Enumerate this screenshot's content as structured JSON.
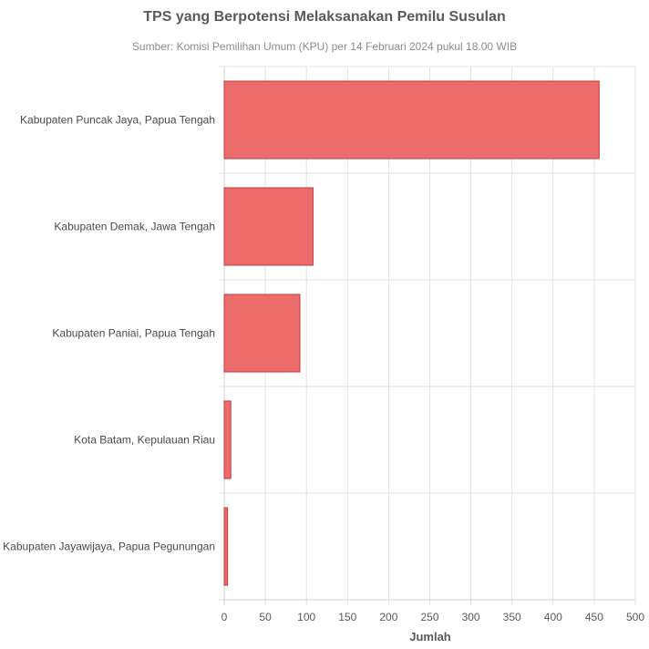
{
  "chart_data": {
    "type": "bar",
    "orientation": "horizontal",
    "title": "TPS yang Berpotensi Melaksanakan Pemilu Susulan",
    "subtitle": "Sumber: Komisi Pemilihan Umum (KPU) per 14 Februari 2024 pukul 18.00 WIB",
    "xlabel": "Jumlah",
    "ylabel": "",
    "categories": [
      "Kabupaten Puncak Jaya, Papua Tengah",
      "Kabupaten Demak, Jawa Tengah",
      "Kabupaten Paniai, Papua Tengah",
      "Kota Batam, Kepulauan Riau",
      "Kabupaten Jayawijaya, Papua Pegunungan"
    ],
    "values": [
      456,
      108,
      92,
      8,
      4
    ],
    "xlim": [
      0,
      500
    ],
    "xticks": [
      "0",
      "50",
      "100",
      "150",
      "200",
      "250",
      "300",
      "350",
      "400",
      "450",
      "500"
    ],
    "grid": true,
    "legend": "none",
    "bar_color": "#ec6b6b",
    "bar_border_color": "#c43c3c"
  }
}
